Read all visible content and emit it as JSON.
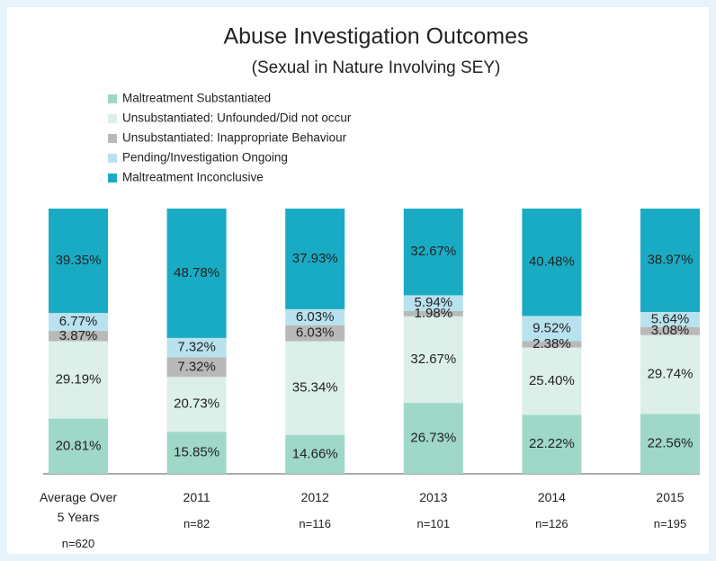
{
  "chart_data": {
    "type": "stacked_bar",
    "title": "Abuse Investigation Outcomes",
    "subtitle": "(Sexual in Nature Involving SEY)",
    "categories": [
      "Average Over 5 Years",
      "2011",
      "2012",
      "2013",
      "2014",
      "2015"
    ],
    "category_notes": [
      "n=620",
      "n=82",
      "n=116",
      "n=101",
      "n=126",
      "n=195"
    ],
    "ylim": [
      0,
      100
    ],
    "series": [
      {
        "name": "Maltreatment Substantiated",
        "color": "#9fd8c8",
        "values": [
          20.81,
          15.85,
          14.66,
          26.73,
          22.22,
          22.56
        ],
        "value_labels": [
          "20.81%",
          "15.85%",
          "14.66%",
          "26.73%",
          "22.22%",
          "22.56%"
        ]
      },
      {
        "name": "Unsubstantiated: Unfounded/Did not occur",
        "color": "#dcefe9",
        "values": [
          29.19,
          20.73,
          35.34,
          32.67,
          25.4,
          29.74
        ],
        "value_labels": [
          "29.19%",
          "20.73%",
          "35.34%",
          "32.67%",
          "25.40%",
          "29.74%"
        ]
      },
      {
        "name": "Unsubstantiated: Inappropriate Behaviour",
        "color": "#b9b9b9",
        "values": [
          3.87,
          7.32,
          6.03,
          1.98,
          2.38,
          3.08
        ],
        "value_labels": [
          "3.87%",
          "7.32%",
          "6.03%",
          "1.98%",
          "2.38%",
          "3.08%"
        ]
      },
      {
        "name": "Pending/Investigation Ongoing",
        "color": "#b8e2ee",
        "values": [
          6.77,
          7.32,
          6.03,
          5.94,
          9.52,
          5.64
        ],
        "value_labels": [
          "6.77%",
          "7.32%",
          "6.03%",
          "5.94%",
          "9.52%",
          "5.64%"
        ]
      },
      {
        "name": "Maltreatment Inconclusive",
        "color": "#1aabc4",
        "values": [
          39.35,
          48.78,
          37.93,
          32.67,
          40.48,
          38.97
        ],
        "value_labels": [
          "39.35%",
          "48.78%",
          "37.93%",
          "32.67%",
          "40.48%",
          "38.97%"
        ]
      }
    ]
  }
}
